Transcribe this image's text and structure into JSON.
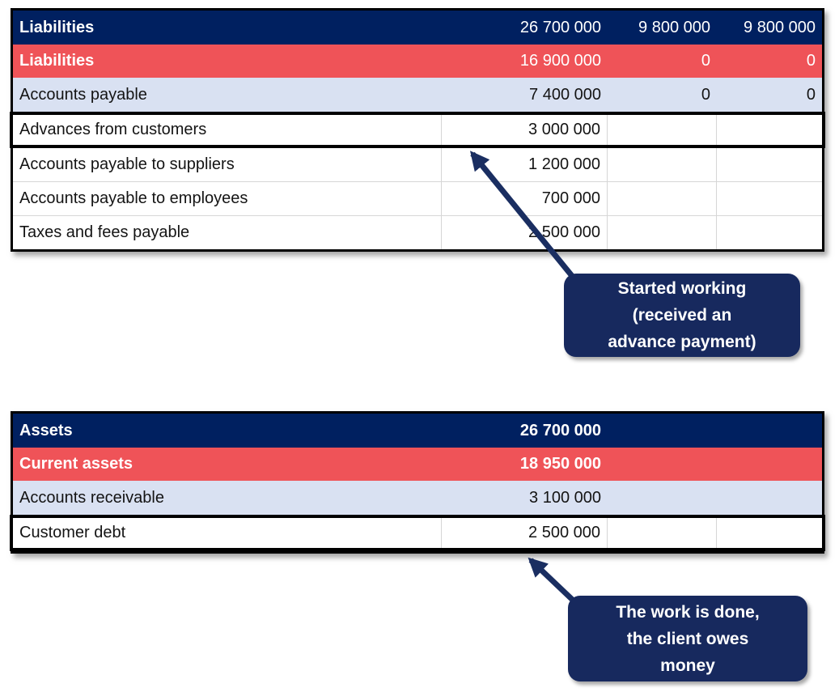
{
  "theme": {
    "header_navy": "#002060",
    "row_red": "#ef5358",
    "row_lavender": "#d9e1f2",
    "callout_navy": "#17295e",
    "arrow_navy": "#1a2e61",
    "grid_line": "#d6d6d6"
  },
  "tables": [
    {
      "name": "liabilities",
      "header": {
        "label": "Liabilities",
        "values": [
          "26 700 000",
          "9 800 000",
          "9 800 000"
        ],
        "values_bold": false
      },
      "rows": [
        {
          "label": "Liabilities",
          "values": [
            "16 900 000",
            "0",
            "0"
          ],
          "style": "red",
          "values_bold": false
        },
        {
          "label": "Accounts payable",
          "values": [
            "7 400 000",
            "0",
            "0"
          ],
          "style": "lavender",
          "values_bold": false
        },
        {
          "label": "Advances from customers",
          "values": [
            "3 000 000",
            "",
            ""
          ],
          "style": "highlight",
          "values_bold": false
        },
        {
          "label": "Accounts payable to suppliers",
          "values": [
            "1 200 000",
            "",
            ""
          ],
          "style": "white",
          "values_bold": false
        },
        {
          "label": "Accounts payable to employees",
          "values": [
            "700 000",
            "",
            ""
          ],
          "style": "white",
          "values_bold": false
        },
        {
          "label": "Taxes and fees payable",
          "values": [
            "2 500 000",
            "",
            ""
          ],
          "style": "white",
          "values_bold": false
        }
      ]
    },
    {
      "name": "assets",
      "header": {
        "label": "Assets",
        "values": [
          "26 700 000",
          "",
          ""
        ],
        "values_bold": true
      },
      "rows": [
        {
          "label": "Current assets",
          "values": [
            "18 950 000",
            "",
            ""
          ],
          "style": "red",
          "values_bold": true
        },
        {
          "label": "Accounts receivable",
          "values": [
            "3 100 000",
            "",
            ""
          ],
          "style": "lavender",
          "values_bold": false
        },
        {
          "label": "Customer debt",
          "values": [
            "2 500 000",
            "",
            ""
          ],
          "style": "highlight",
          "values_bold": false
        }
      ]
    }
  ],
  "callouts": [
    {
      "name": "started-working",
      "lines": [
        "Started working",
        "(received an",
        "advance payment)"
      ]
    },
    {
      "name": "work-done",
      "lines": [
        "The work is done,",
        "the client owes",
        "money"
      ]
    }
  ]
}
